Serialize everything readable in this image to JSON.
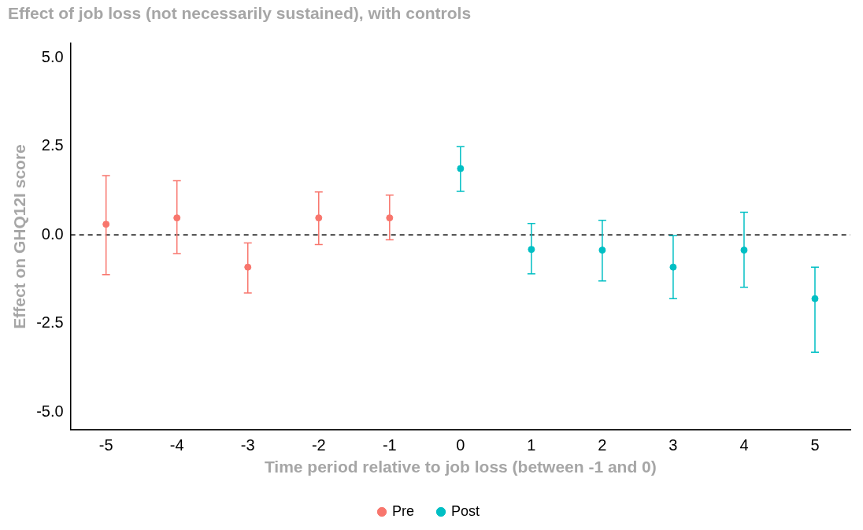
{
  "chart_data": {
    "type": "scatter",
    "title": "Effect of job loss (not necessarily sustained), with controls",
    "xlabel": "Time period relative to job loss (between -1 and 0)",
    "ylabel": "Effect on GHQ12I score",
    "categories": [
      "-5",
      "-4",
      "-3",
      "-2",
      "-1",
      "0",
      "1",
      "2",
      "3",
      "4",
      "5"
    ],
    "series": [
      {
        "name": "Pre",
        "color": "#f8766d",
        "values": [
          0.3,
          0.48,
          -0.91,
          0.48,
          0.48,
          null,
          null,
          null,
          null,
          null,
          null
        ],
        "errors": [
          [
            -1.12,
            1.67
          ],
          [
            -0.53,
            1.53
          ],
          [
            -1.64,
            -0.23
          ],
          [
            -0.27,
            1.21
          ],
          [
            -0.14,
            1.12
          ],
          null,
          null,
          null,
          null,
          null,
          null
        ]
      },
      {
        "name": "Post",
        "color": "#00bfc4",
        "values": [
          null,
          null,
          null,
          null,
          null,
          1.87,
          -0.41,
          -0.43,
          -0.91,
          -0.43,
          -1.8
        ],
        "errors": [
          null,
          null,
          null,
          null,
          null,
          [
            1.23,
            2.49
          ],
          [
            -1.1,
            0.32
          ],
          [
            -1.3,
            0.41
          ],
          [
            -1.8,
            -0.02
          ],
          [
            -1.48,
            0.64
          ],
          [
            -3.31,
            -0.91
          ]
        ]
      }
    ],
    "ylim": [
      -5.5,
      5.4
    ],
    "yticks": [
      {
        "value": -5,
        "label": "-5.0"
      },
      {
        "value": -2.5,
        "label": "-2.5"
      },
      {
        "value": 0,
        "label": "0.0"
      },
      {
        "value": 2.5,
        "label": "2.5"
      },
      {
        "value": 5,
        "label": "5.0"
      }
    ],
    "ref_lines": [
      {
        "axis": "y",
        "value": 0,
        "line_style": "dashed",
        "color": "#000000"
      }
    ],
    "grid": false,
    "legend": "bottom",
    "marker": "circle"
  }
}
